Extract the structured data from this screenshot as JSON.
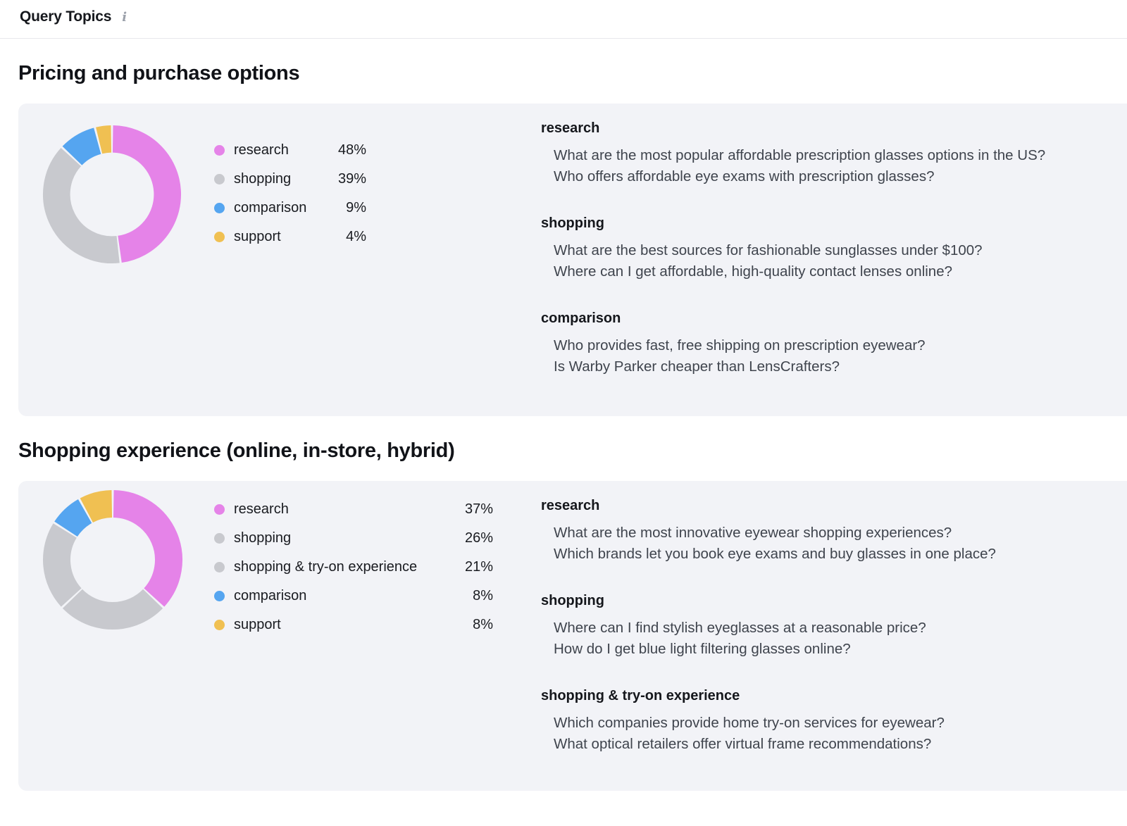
{
  "header": {
    "title": "Query Topics",
    "info_glyph": "i"
  },
  "colors": {
    "card_bg": "#f2f3f7",
    "divider": "#e7e8ec",
    "research_pink": "#e583e8",
    "shopping_gray": "#c8c9ce",
    "comparison_blue": "#55a5f0",
    "support_yellow": "#f0c052",
    "query_text": "#3f444d"
  },
  "chart_data": [
    {
      "type": "donut",
      "title": "Pricing and purchase options",
      "start": "top",
      "direction": "clockwise",
      "inner_radius_ratio": 0.6,
      "legend_position": "right",
      "slices": [
        {
          "label": "research",
          "value": 48,
          "value_label": "48%",
          "color": "#e583e8"
        },
        {
          "label": "shopping",
          "value": 39,
          "value_label": "39%",
          "color": "#c8c9ce"
        },
        {
          "label": "comparison",
          "value": 9,
          "value_label": "9%",
          "color": "#55a5f0"
        },
        {
          "label": "support",
          "value": 4,
          "value_label": "4%",
          "color": "#f0c052"
        }
      ]
    },
    {
      "type": "donut",
      "title": "Shopping experience (online, in-store, hybrid)",
      "start": "top",
      "direction": "clockwise",
      "inner_radius_ratio": 0.6,
      "legend_position": "right",
      "slices": [
        {
          "label": "research",
          "value": 37,
          "value_label": "37%",
          "color": "#e583e8"
        },
        {
          "label": "shopping",
          "value": 26,
          "value_label": "26%",
          "color": "#c8c9ce"
        },
        {
          "label": "shopping & try-on experience",
          "value": 21,
          "value_label": "21%",
          "color": "#c8c9ce"
        },
        {
          "label": "comparison",
          "value": 8,
          "value_label": "8%",
          "color": "#55a5f0"
        },
        {
          "label": "support",
          "value": 8,
          "value_label": "8%",
          "color": "#f0c052"
        }
      ]
    }
  ],
  "sections": [
    {
      "heading": "Pricing and purchase options",
      "query_groups": [
        {
          "title": "research",
          "queries": [
            "What are the most popular affordable prescription glasses options in the US?",
            "Who offers affordable eye exams with prescription glasses?"
          ]
        },
        {
          "title": "shopping",
          "queries": [
            "What are the best sources for fashionable sunglasses under $100?",
            "Where can I get affordable, high-quality contact lenses online?"
          ]
        },
        {
          "title": "comparison",
          "queries": [
            "Who provides fast, free shipping on prescription eyewear?",
            "Is Warby Parker cheaper than LensCrafters?"
          ]
        }
      ]
    },
    {
      "heading": "Shopping experience (online, in-store, hybrid)",
      "query_groups": [
        {
          "title": "research",
          "queries": [
            "What are the most innovative eyewear shopping experiences?",
            "Which brands let you book eye exams and buy glasses in one place?"
          ]
        },
        {
          "title": "shopping",
          "queries": [
            "Where can I find stylish eyeglasses at a reasonable price?",
            "How do I get blue light filtering glasses online?"
          ]
        },
        {
          "title": "shopping & try-on experience",
          "queries": [
            "Which companies provide home try-on services for eyewear?",
            "What optical retailers offer virtual frame recommendations?"
          ]
        }
      ]
    }
  ]
}
